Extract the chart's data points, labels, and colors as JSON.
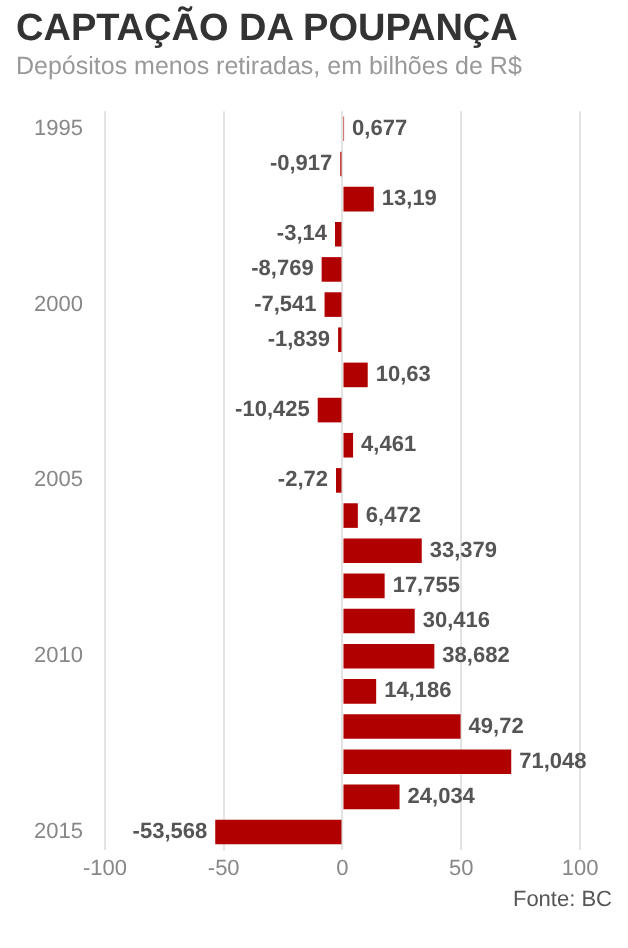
{
  "chart_data": {
    "type": "bar",
    "orientation": "horizontal",
    "title": "CAPTAÇÃO DA POUPANÇA",
    "subtitle": "Depósitos menos retiradas, em bilhões de R$",
    "categories": [
      "1995",
      null,
      null,
      null,
      null,
      "2000",
      null,
      null,
      null,
      null,
      "2005",
      null,
      null,
      null,
      null,
      "2010",
      null,
      null,
      null,
      null,
      "2015"
    ],
    "values": [
      0.677,
      -0.917,
      13.19,
      -3.14,
      -8.769,
      -7.541,
      -1.839,
      10.63,
      -10.425,
      4.461,
      -2.72,
      6.472,
      33.379,
      17.755,
      30.416,
      38.682,
      14.186,
      49.72,
      71.048,
      24.034,
      -53.568
    ],
    "value_labels": [
      "0,677",
      "-0,917",
      "13,19",
      "-3,14",
      "-8,769",
      "-7,541",
      "-1,839",
      "10,63",
      "-10,425",
      "4,461",
      "-2,72",
      "6,472",
      "33,379",
      "17,755",
      "30,416",
      "38,682",
      "14,186",
      "49,72",
      "71,048",
      "24,034",
      "-53,568"
    ],
    "color": "#b00000",
    "xlim": [
      -100,
      100
    ],
    "xticks": [
      -100,
      -50,
      0,
      50,
      100
    ],
    "grid": "x",
    "legend": false,
    "annotations": [
      "Fonte: BC"
    ]
  }
}
